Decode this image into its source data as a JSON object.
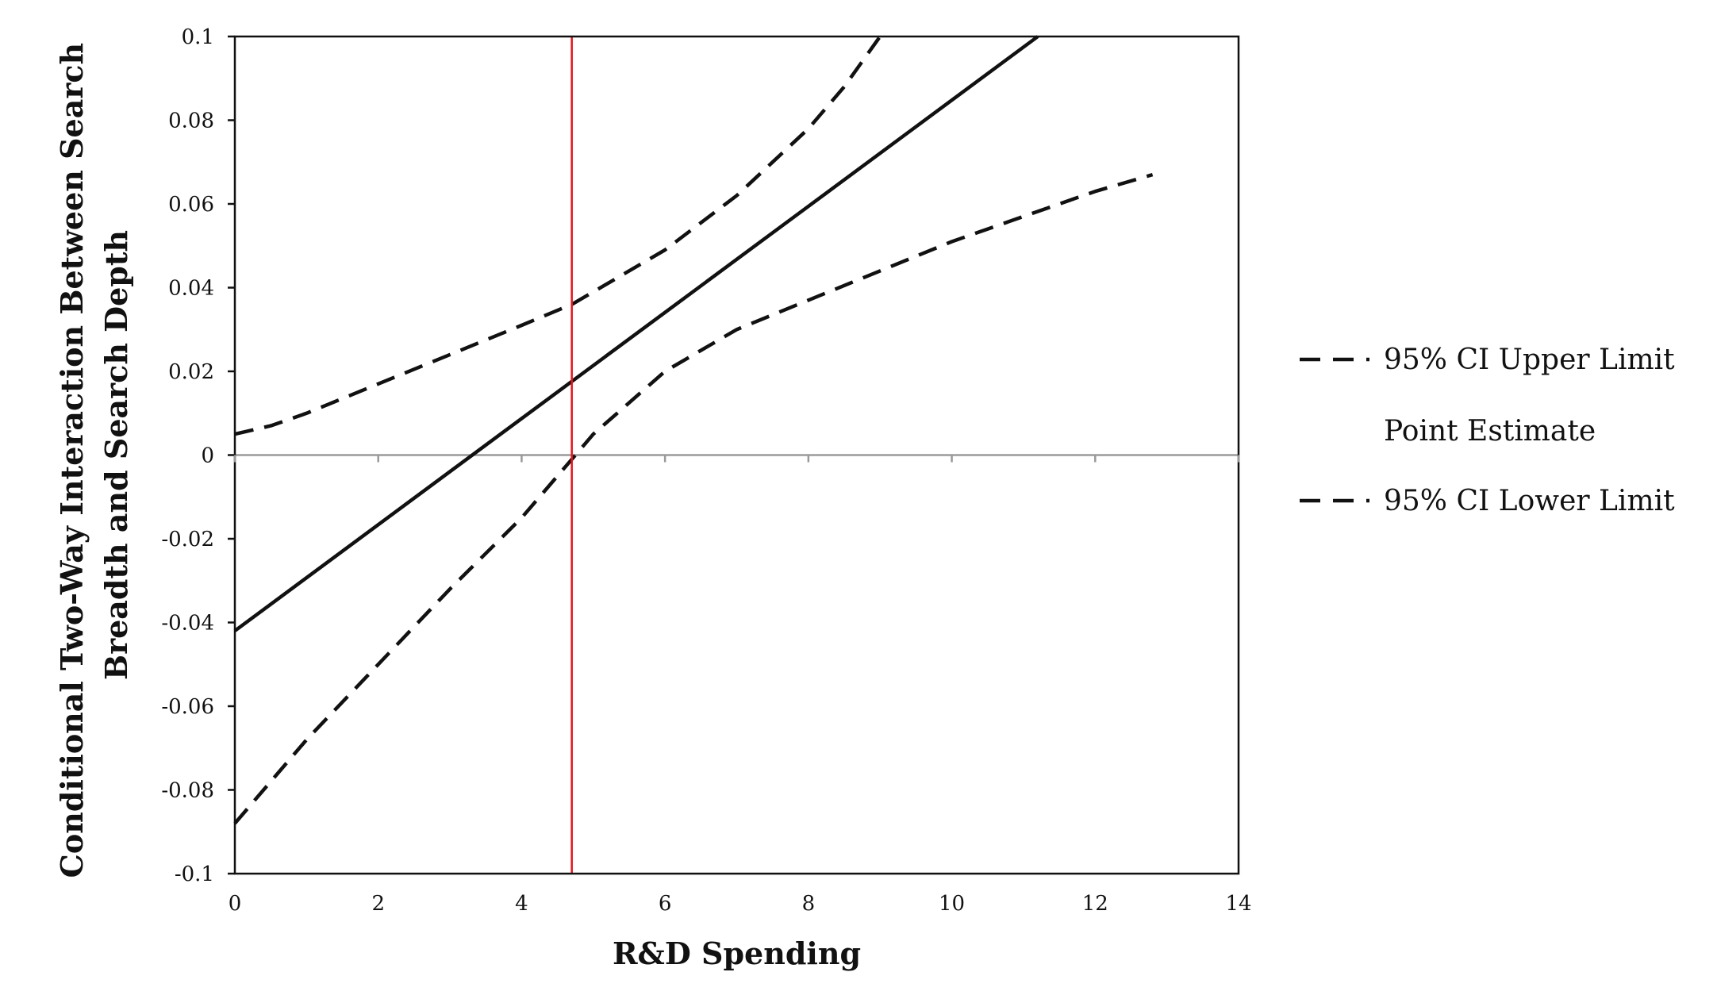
{
  "chart_data": {
    "type": "line",
    "title": "",
    "xlabel": "R&D Spending",
    "ylabel_lines": [
      "Conditional Two-Way Interaction Between Search",
      "Breadth and Search Depth"
    ],
    "xlim": [
      0,
      14
    ],
    "ylim": [
      -0.1,
      0.1
    ],
    "x_ticks": [
      0,
      2,
      4,
      6,
      8,
      10,
      12,
      14
    ],
    "y_ticks": [
      -0.1,
      -0.08,
      -0.06,
      -0.04,
      -0.02,
      0,
      0.02,
      0.04,
      0.06,
      0.08,
      0.1
    ],
    "x_tick_labels": [
      "0",
      "2",
      "4",
      "6",
      "8",
      "10",
      "12",
      "14"
    ],
    "y_tick_labels": [
      "-0.1",
      "-0.08",
      "-0.06",
      "-0.04",
      "-0.02",
      "0",
      "0.02",
      "0.04",
      "0.06",
      "0.08",
      "0.1"
    ],
    "zero_line": true,
    "grid": false,
    "legend_position": "right",
    "reference_line": {
      "x": 4.7,
      "color": "#e8141b"
    },
    "series": [
      {
        "name": "95% CI Upper Limit",
        "style": "dashed",
        "show_legend_swatch": true,
        "color": "#111111",
        "x": [
          0,
          0.5,
          1,
          2,
          3,
          4,
          4.7,
          5,
          6,
          7,
          7.5,
          8,
          8.5,
          9
        ],
        "y": [
          0.005,
          0.007,
          0.01,
          0.017,
          0.024,
          0.031,
          0.036,
          0.039,
          0.049,
          0.062,
          0.07,
          0.078,
          0.088,
          0.1
        ]
      },
      {
        "name": "Point Estimate",
        "style": "solid",
        "show_legend_swatch": false,
        "color": "#111111",
        "x": [
          0,
          11.2
        ],
        "y": [
          -0.042,
          0.1
        ]
      },
      {
        "name": "95% CI Lower Limit",
        "style": "dashed",
        "show_legend_swatch": true,
        "color": "#111111",
        "x": [
          0,
          1,
          2,
          3,
          4,
          4.7,
          5,
          6,
          7,
          8,
          9,
          10,
          11,
          12,
          12.8
        ],
        "y": [
          -0.088,
          -0.068,
          -0.05,
          -0.032,
          -0.015,
          -0.001,
          0.005,
          0.02,
          0.03,
          0.037,
          0.044,
          0.051,
          0.057,
          0.063,
          0.067
        ]
      }
    ]
  }
}
